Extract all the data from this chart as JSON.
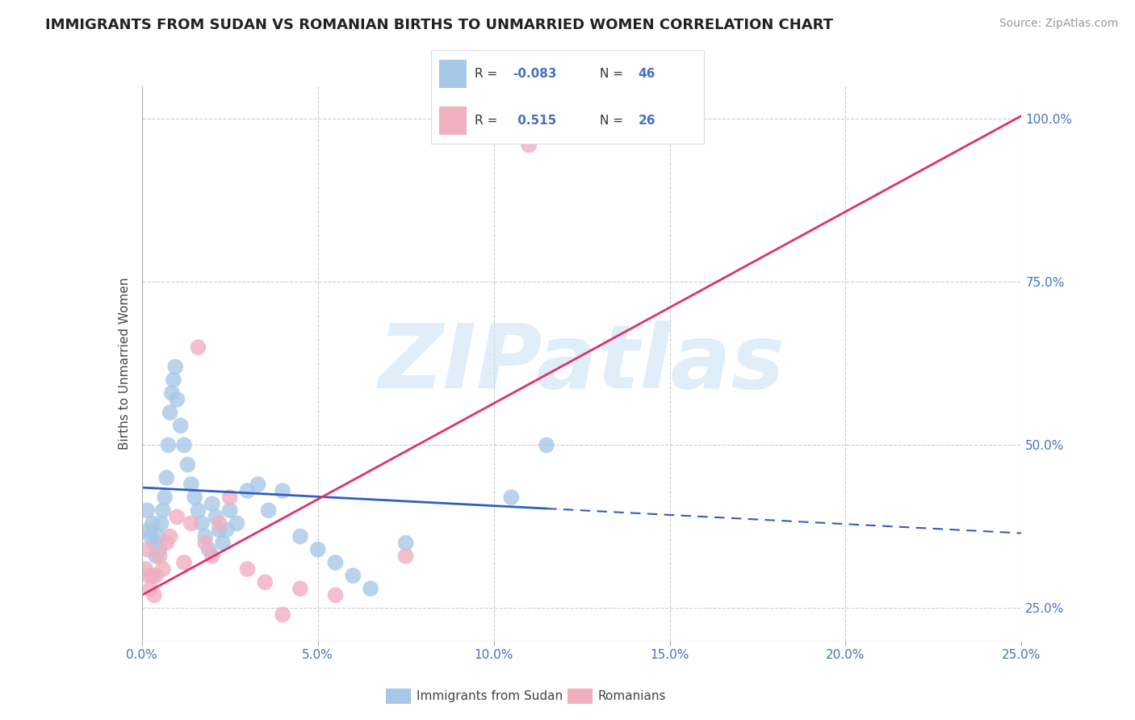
{
  "title": "IMMIGRANTS FROM SUDAN VS ROMANIAN BIRTHS TO UNMARRIED WOMEN CORRELATION CHART",
  "source_text": "Source: ZipAtlas.com",
  "ylabel": "Births to Unmarried Women",
  "watermark": "ZIPatlas",
  "legend_blue_label": "Immigrants from Sudan",
  "legend_pink_label": "Romanians",
  "legend_blue_R": "-0.083",
  "legend_pink_R": " 0.515",
  "legend_blue_N": "46",
  "legend_pink_N": "26",
  "xlim": [
    0.0,
    25.0
  ],
  "ylim": [
    20.0,
    105.0
  ],
  "x_ticks": [
    0.0,
    5.0,
    10.0,
    15.0,
    20.0,
    25.0
  ],
  "y_ticks_right": [
    25.0,
    50.0,
    75.0,
    100.0
  ],
  "blue_color": "#a8c8e8",
  "pink_color": "#f0b0c0",
  "blue_line_color": "#3060c0",
  "pink_line_color": "#e03070",
  "blue_scatter_x": [
    0.15,
    0.2,
    0.25,
    0.3,
    0.35,
    0.4,
    0.45,
    0.5,
    0.55,
    0.6,
    0.65,
    0.7,
    0.75,
    0.8,
    0.85,
    0.9,
    0.95,
    1.0,
    1.1,
    1.2,
    1.3,
    1.4,
    1.5,
    1.6,
    1.7,
    1.8,
    1.9,
    2.0,
    2.1,
    2.2,
    2.3,
    2.4,
    2.5,
    2.7,
    3.0,
    3.3,
    3.6,
    4.0,
    4.5,
    5.0,
    5.5,
    6.0,
    6.5,
    7.5,
    10.5,
    11.5
  ],
  "blue_scatter_y": [
    40,
    37,
    36,
    38,
    35,
    33,
    36,
    34,
    38,
    40,
    42,
    45,
    50,
    55,
    58,
    60,
    62,
    57,
    53,
    50,
    47,
    44,
    42,
    40,
    38,
    36,
    34,
    41,
    39,
    37,
    35,
    37,
    40,
    38,
    43,
    44,
    40,
    43,
    36,
    34,
    32,
    30,
    28,
    35,
    42,
    50
  ],
  "pink_scatter_x": [
    0.1,
    0.15,
    0.2,
    0.25,
    0.3,
    0.35,
    0.4,
    0.5,
    0.6,
    0.7,
    0.8,
    1.0,
    1.2,
    1.4,
    1.6,
    1.8,
    2.0,
    2.2,
    2.5,
    3.0,
    3.5,
    4.0,
    4.5,
    5.5,
    7.5,
    11.0
  ],
  "pink_scatter_y": [
    31,
    34,
    30,
    28,
    30,
    27,
    30,
    33,
    31,
    35,
    36,
    39,
    32,
    38,
    65,
    35,
    33,
    38,
    42,
    31,
    29,
    24,
    28,
    27,
    33,
    96
  ],
  "blue_trend_x0": 0.0,
  "blue_trend_x1": 25.0,
  "blue_trend_y0": 43.5,
  "blue_trend_y1": 36.5,
  "blue_solid_x1": 11.5,
  "pink_trend_x0": 0.0,
  "pink_trend_x1": 25.0,
  "pink_trend_y0": 27.0,
  "pink_trend_y1": 100.5,
  "title_fontsize": 13,
  "tick_fontsize": 11,
  "source_fontsize": 10,
  "background_color": "#ffffff",
  "grid_color": "#cccccc"
}
